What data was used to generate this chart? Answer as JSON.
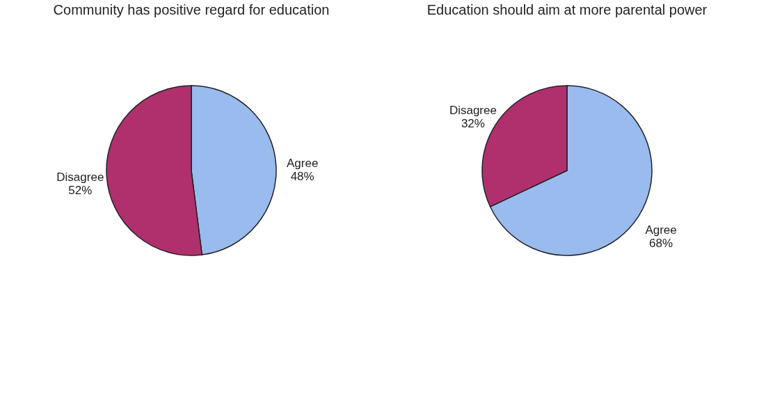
{
  "chart_data": [
    {
      "type": "pie",
      "title": "Community has positive regard for education",
      "categories": [
        "Agree",
        "Disagree"
      ],
      "values": [
        48,
        52
      ],
      "colors": [
        "#99bbee",
        "#b0306e"
      ],
      "value_labels": [
        "48%",
        "52%"
      ]
    },
    {
      "type": "pie",
      "title": "Education should aim at more parental power",
      "categories": [
        "Agree",
        "Disagree"
      ],
      "values": [
        68,
        32
      ],
      "colors": [
        "#99bbee",
        "#b0306e"
      ],
      "value_labels": [
        "68%",
        "32%"
      ]
    }
  ]
}
